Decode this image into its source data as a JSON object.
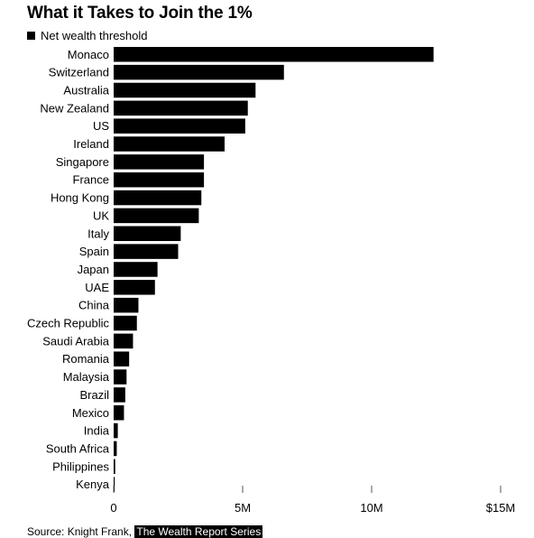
{
  "title": "What it Takes to Join the 1%",
  "legend": {
    "label": "Net wealth threshold",
    "color": "#000000"
  },
  "source": {
    "prefix": "Source: Knight Frank, ",
    "link": "The Wealth Report Series"
  },
  "chart_data": {
    "type": "bar",
    "orientation": "horizontal",
    "title": "What it Takes to Join the 1%",
    "xlabel": "",
    "ylabel": "",
    "series": [
      {
        "name": "Net wealth threshold",
        "values": [
          12.4,
          6.6,
          5.5,
          5.2,
          5.1,
          4.3,
          3.5,
          3.5,
          3.4,
          3.3,
          2.6,
          2.5,
          1.7,
          1.6,
          0.96,
          0.9,
          0.75,
          0.6,
          0.5,
          0.45,
          0.4,
          0.16,
          0.12,
          0.06,
          0.04
        ]
      }
    ],
    "categories": [
      "Monaco",
      "Switzerland",
      "Australia",
      "New Zealand",
      "US",
      "Ireland",
      "Singapore",
      "France",
      "Hong Kong",
      "UK",
      "Italy",
      "Spain",
      "Japan",
      "UAE",
      "China",
      "Czech Republic",
      "Saudi Arabia",
      "Romania",
      "Malaysia",
      "Brazil",
      "Mexico",
      "India",
      "South Africa",
      "Philippines",
      "Kenya"
    ],
    "xlim": [
      0,
      15
    ],
    "xticks": [
      0,
      5,
      10,
      15
    ],
    "xtick_labels": [
      "0",
      "5M",
      "10M",
      "$15M"
    ],
    "unit": "million USD",
    "grid": false,
    "legend_position": "top-left",
    "bar_color": "#000000"
  }
}
